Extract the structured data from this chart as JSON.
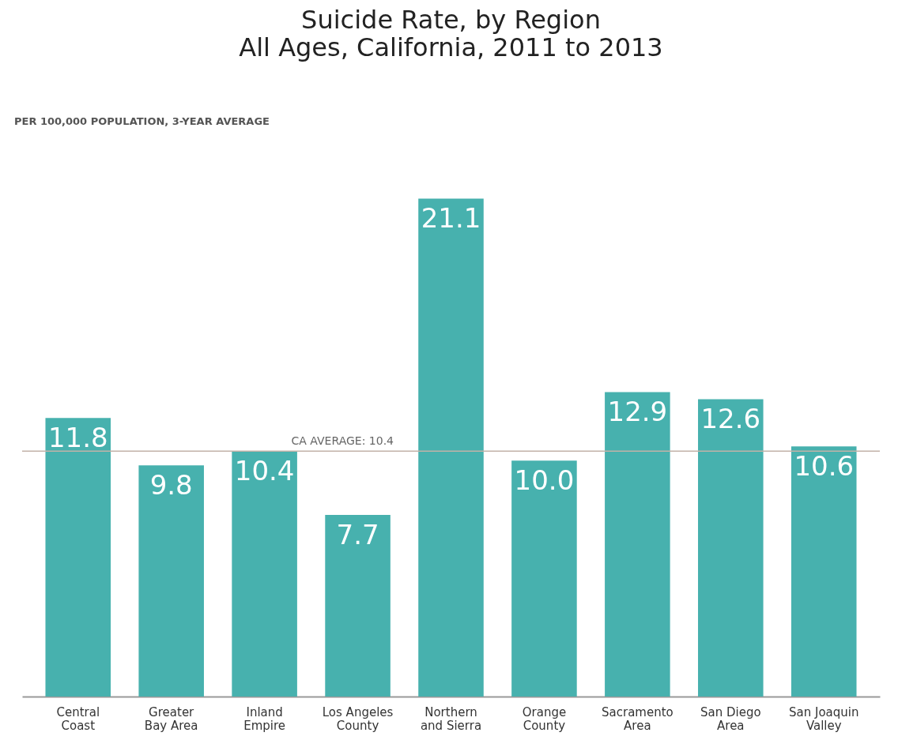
{
  "chart_data": {
    "type": "bar",
    "title": "Suicide Rate, by Region",
    "subtitle": "All Ages, California, 2011  to 2013",
    "annotations": [
      "PER 100,000 POPULATION, 3-YEAR AVERAGE"
    ],
    "categories": [
      "Central Coast",
      "Greater Bay Area",
      "Inland Empire",
      "Los Angeles County",
      "Northern and Sierra",
      "Orange County",
      "Sacramento Area",
      "San Diego Area",
      "San Joaquin Valley"
    ],
    "values": [
      11.8,
      9.8,
      10.4,
      7.7,
      21.1,
      10.0,
      12.9,
      12.6,
      10.6
    ],
    "color": "#47b1ae",
    "ref_lines": [
      {
        "axis": "y",
        "value": 10.4,
        "label": "CA AVERAGE: 10.4",
        "color": "#c2b2a8"
      }
    ],
    "value_labels": [
      "11.8",
      "9.8",
      "10.4",
      "7.7",
      "21.1",
      "10.0",
      "12.9",
      "12.6",
      "10.6"
    ]
  }
}
